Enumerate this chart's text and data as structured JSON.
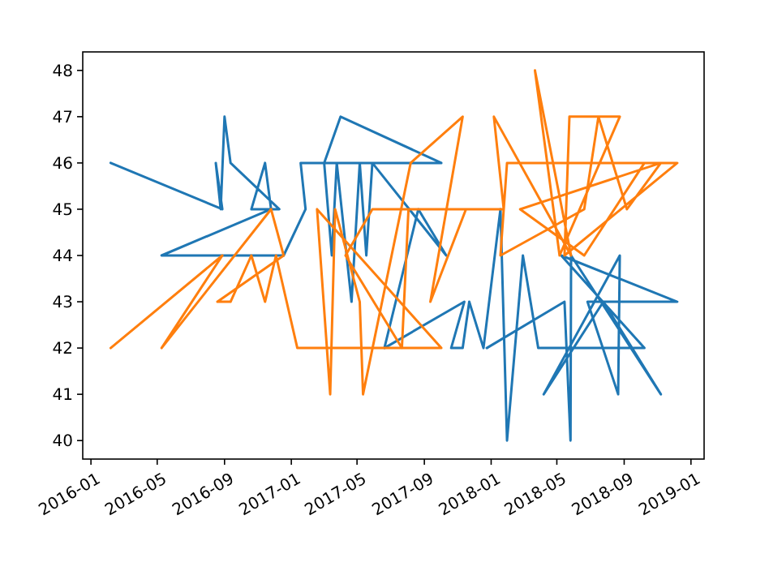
{
  "chart_data": {
    "type": "line",
    "xlim": [
      "2015-12-17",
      "2019-01-25"
    ],
    "ylim": [
      39.6,
      48.4
    ],
    "xticks": [
      "2016-01",
      "2016-05",
      "2016-09",
      "2017-01",
      "2017-05",
      "2017-09",
      "2018-01",
      "2018-05",
      "2018-09",
      "2019-01"
    ],
    "yticks": [
      40,
      41,
      42,
      43,
      44,
      45,
      46,
      47,
      48
    ],
    "series": [
      {
        "color": "#1f77b4",
        "x": [
          "2016-02-06",
          "2016-08-28",
          "2016-08-16",
          "2016-08-25",
          "2016-09-01",
          "2016-09-12",
          "2016-12-10",
          "2016-10-20",
          "2016-11-14",
          "2016-11-25",
          "2016-05-09",
          "2016-12-18",
          "2017-01-27",
          "2017-01-18",
          "2017-10-02",
          "2017-04-01",
          "2017-03-02",
          "2017-03-16",
          "2017-03-25",
          "2017-04-21",
          "2017-05-06",
          "2017-05-18",
          "2017-05-29",
          "2017-10-11",
          "2017-08-21",
          "2017-06-20",
          "2017-11-13",
          "2017-10-20",
          "2017-11-10",
          "2017-11-22",
          "2017-12-18",
          "2018-01-18",
          "2018-01-30",
          "2018-02-28",
          "2018-03-28",
          "2018-10-08",
          "2018-05-09",
          "2018-12-07",
          "2018-06-26",
          "2018-08-21",
          "2018-08-24",
          "2018-04-07",
          "2018-07-25",
          "2018-11-07",
          "2018-05-27",
          "2018-05-26",
          "2018-05-15",
          "2017-12-24"
        ],
        "values": [
          46,
          45,
          46,
          45,
          47,
          46,
          45,
          45,
          46,
          45,
          44,
          44,
          45,
          46,
          46,
          47,
          46,
          44,
          46,
          43,
          46,
          44,
          46,
          44,
          45,
          42,
          43,
          42,
          42,
          43,
          42,
          45,
          40,
          44,
          42,
          42,
          44,
          43,
          43,
          41,
          44,
          41,
          43,
          41,
          44,
          40,
          43,
          42
        ]
      },
      {
        "color": "#ff7f0e",
        "x": [
          "2016-02-06",
          "2016-08-28",
          "2016-05-09",
          "2016-11-25",
          "2016-12-18",
          "2016-08-19",
          "2016-09-12",
          "2016-10-20",
          "2016-11-14",
          "2016-12-04",
          "2017-01-12",
          "2017-10-02",
          "2017-02-17",
          "2017-03-13",
          "2017-03-22",
          "2017-05-06",
          "2017-05-12",
          "2017-08-07",
          "2017-11-10",
          "2017-09-12",
          "2017-11-16",
          "2017-05-29",
          "2017-04-10",
          "2017-07-22",
          "2017-08-03",
          "2018-01-24",
          "2018-01-06",
          "2018-05-27",
          "2018-03-22",
          "2018-05-06",
          "2018-08-24",
          "2018-05-24",
          "2018-05-15",
          "2018-12-07",
          "2018-01-30",
          "2018-01-18",
          "2018-06-20",
          "2018-07-16",
          "2018-09-06",
          "2018-11-07",
          "2018-02-23",
          "2018-06-20",
          "2018-10-08",
          "2018-07-19"
        ],
        "values": [
          42,
          44,
          42,
          45,
          44,
          43,
          43,
          44,
          43,
          44,
          42,
          42,
          45,
          41,
          45,
          43,
          41,
          46,
          47,
          43,
          45,
          45,
          44,
          42,
          45,
          45,
          47,
          44,
          48,
          44,
          47,
          47,
          44,
          46,
          46,
          44,
          45,
          47,
          45,
          46,
          45,
          44,
          46,
          46
        ]
      }
    ]
  }
}
